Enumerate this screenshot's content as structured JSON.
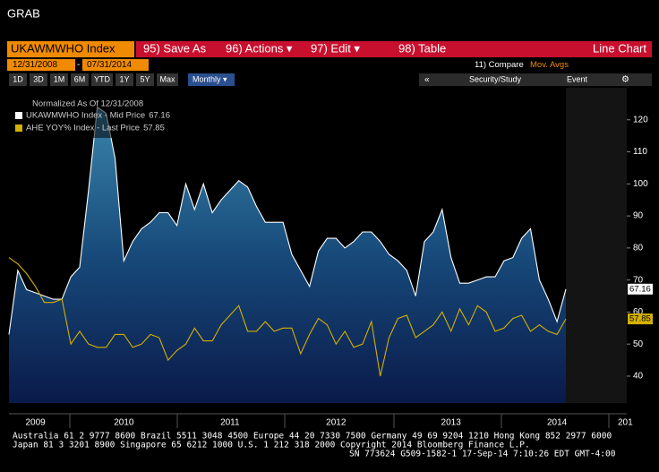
{
  "ui": {
    "title": "GRAB",
    "ticker": "UKAWMWHO Index",
    "menu": [
      "95) Save As",
      "96) Actions ▾",
      "97) Edit ▾",
      "98) Table"
    ],
    "chart_kind": "Line Chart",
    "start_date": "12/31/2008",
    "date_sep": "-",
    "end_date": "07/31/2014",
    "compare": "11) Compare",
    "mov_avgs": "Mov. Avgs",
    "periods": [
      "1D",
      "3D",
      "1M",
      "6M",
      "YTD",
      "1Y",
      "5Y",
      "Max"
    ],
    "frequency": "Monthly ▾",
    "collapse": "«",
    "security_study": "Security/Study",
    "event": "Event",
    "settings": "⚙",
    "x_cut_label": "201",
    "footer": [
      "Australia 61 2 9777 8600 Brazil 5511 3048 4500 Europe 44 20 7330 7500 Germany 49 69 9204 1210 Hong Kong 852 2977 6000",
      "Japan 81 3 3201 8900     Singapore 65 6212 1000     U.S. 1 212 318 2000     Copyright 2014 Bloomberg Finance L.P.",
      "SN 773624 G509-1582-1 17-Sep-14  7:10:26 EDT  GMT-4:00"
    ]
  },
  "chart_data": {
    "type": "line",
    "legend_title": "Normalized As Of 12/31/2008",
    "legend": "top-left",
    "grid": false,
    "categories": [
      null,
      null,
      null,
      "2009",
      null,
      null,
      null,
      null,
      null,
      null,
      null,
      null,
      null,
      "2010",
      null,
      null,
      null,
      null,
      null,
      null,
      null,
      null,
      null,
      null,
      null,
      "2011",
      null,
      null,
      null,
      null,
      null,
      null,
      null,
      null,
      null,
      null,
      null,
      "2012",
      null,
      null,
      null,
      null,
      null,
      null,
      null,
      null,
      null,
      null,
      null,
      null,
      "2013",
      null,
      null,
      null,
      null,
      null,
      null,
      null,
      null,
      null,
      null,
      null,
      "2014",
      null
    ],
    "series": [
      {
        "name": "UKAWMWHO Index - Mid Price",
        "color": "#ffffff",
        "values": [
          53,
          73,
          67,
          66,
          65,
          64,
          64,
          71,
          74,
          98,
          124,
          122,
          108,
          76,
          82,
          86,
          88,
          91,
          91,
          87,
          100,
          92,
          100,
          91,
          95,
          98,
          101,
          99,
          93,
          88,
          88,
          88,
          78,
          73,
          68,
          79,
          83,
          83,
          80,
          82,
          85,
          85,
          82,
          78,
          76,
          73,
          65,
          82,
          85,
          92,
          77,
          69,
          69,
          70,
          71,
          71,
          76,
          77,
          83,
          86,
          70,
          64,
          57,
          67.16
        ]
      },
      {
        "name": "AHE YOY% Index - Last Price",
        "color": "#d4b000",
        "values": [
          77,
          75,
          72,
          68,
          63,
          63,
          64,
          50,
          54,
          50,
          49,
          49,
          53,
          53,
          49,
          50,
          53,
          52,
          45,
          48,
          50,
          55,
          51,
          51,
          56,
          59,
          62,
          54,
          54,
          57,
          54,
          55,
          55,
          47,
          53,
          58,
          56,
          50,
          54,
          49,
          50,
          57,
          40,
          52,
          58,
          59,
          52,
          54,
          56,
          60,
          54,
          61,
          56,
          62,
          60,
          54,
          55,
          58,
          59,
          54,
          56,
          54,
          53,
          57.85
        ]
      }
    ],
    "ylim": [
      31.6,
      130
    ],
    "yticks": [
      40,
      50,
      60,
      70,
      80,
      90,
      100,
      110,
      120
    ]
  }
}
